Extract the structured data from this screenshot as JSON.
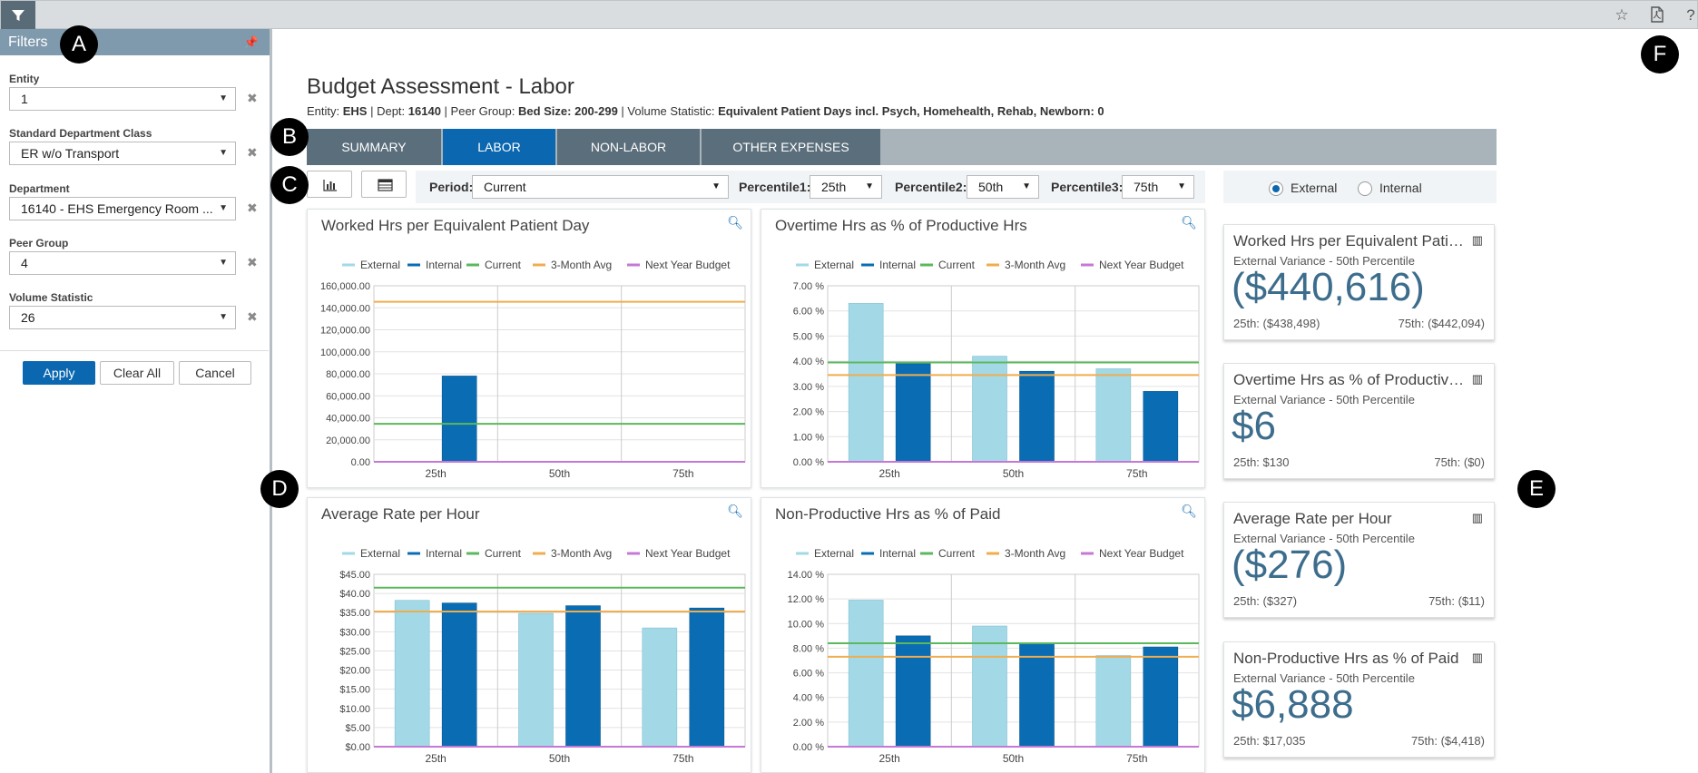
{
  "topbar": {
    "icons": [
      "filter-icon",
      "star-icon",
      "pdf-icon",
      "help-icon"
    ],
    "help_glyph": "?"
  },
  "filters": {
    "title": "Filters",
    "fields": [
      {
        "label": "Entity",
        "value": "1"
      },
      {
        "label": "Standard Department Class",
        "value": "ER w/o Transport"
      },
      {
        "label": "Department",
        "value": "16140 - EHS Emergency Room ..."
      },
      {
        "label": "Peer Group",
        "value": "4"
      },
      {
        "label": "Volume Statistic",
        "value": "26"
      }
    ],
    "apply_label": "Apply",
    "clear_label": "Clear All",
    "cancel_label": "Cancel"
  },
  "markers": {
    "a": "A",
    "b": "B",
    "c": "C",
    "d": "D",
    "e": "E",
    "f": "F"
  },
  "header": {
    "title": "Budget Assessment - Labor",
    "entity_label": "Entity: ",
    "entity_value": "EHS",
    "dept_label": " | Dept: ",
    "dept_value": "16140",
    "peer_label": " | Peer Group: ",
    "peer_value": "Bed Size: 200-299",
    "volume_label": " | Volume Statistic: ",
    "volume_value": "Equivalent Patient Days incl. Psych, Homehealth, Rehab, Newborn: 0"
  },
  "tabs": [
    "SUMMARY",
    "LABOR",
    "NON-LABOR",
    "OTHER EXPENSES"
  ],
  "active_tab": "LABOR",
  "toolbar": {
    "period_label": "Period:",
    "period_value": "Current",
    "p1_label": "Percentile1:",
    "p1_value": "25th",
    "p2_label": "Percentile2:",
    "p2_value": "50th",
    "p3_label": "Percentile3:",
    "p3_value": "75th",
    "radio_external": "External",
    "radio_internal": "Internal",
    "selected_radio": "External"
  },
  "colors": {
    "external": "#a3d9e6",
    "internal": "#0a6db3",
    "current": "#5cb85c",
    "three_month": "#f0ad4e",
    "next_year": "#c678d6",
    "accent": "#0a67b0"
  },
  "chart_data": [
    {
      "type": "bar",
      "title": "Worked Hrs per Equivalent Patient Day",
      "categories": [
        "25th",
        "50th",
        "75th"
      ],
      "series": [
        {
          "name": "External",
          "values": [
            0,
            0,
            0
          ]
        },
        {
          "name": "Internal",
          "values": [
            78000,
            0,
            0
          ]
        }
      ],
      "lines": [
        {
          "name": "Current",
          "value": 34500
        },
        {
          "name": "3-Month Avg",
          "value": 145500
        },
        {
          "name": "Next Year Budget",
          "value": 0
        }
      ],
      "legend": [
        "External",
        "Internal",
        "Current",
        "3-Month Avg",
        "Next Year Budget"
      ],
      "ylim": [
        0,
        160000
      ],
      "yticks": [
        "160,000.00",
        "140,000.00",
        "120,000.00",
        "100,000.00",
        "80,000.00",
        "60,000.00",
        "40,000.00",
        "20,000.00",
        "0.00"
      ],
      "grid": true,
      "legend_position": "top"
    },
    {
      "type": "bar",
      "title": "Overtime Hrs as % of Productive Hrs",
      "categories": [
        "25th",
        "50th",
        "75th"
      ],
      "series": [
        {
          "name": "External",
          "values": [
            6.3,
            4.2,
            3.7
          ]
        },
        {
          "name": "Internal",
          "values": [
            3.9,
            3.6,
            2.8
          ]
        }
      ],
      "lines": [
        {
          "name": "Current",
          "value": 3.95
        },
        {
          "name": "3-Month Avg",
          "value": 3.45
        },
        {
          "name": "Next Year Budget",
          "value": 0
        }
      ],
      "legend": [
        "External",
        "Internal",
        "Current",
        "3-Month Avg",
        "Next Year Budget"
      ],
      "ylim": [
        0,
        7
      ],
      "yticks": [
        "7.00 %",
        "6.00 %",
        "5.00 %",
        "4.00 %",
        "3.00 %",
        "2.00 %",
        "1.00 %",
        "0.00 %"
      ],
      "grid": true,
      "legend_position": "top"
    },
    {
      "type": "bar",
      "title": "Average Rate per Hour",
      "categories": [
        "25th",
        "50th",
        "75th"
      ],
      "series": [
        {
          "name": "External",
          "values": [
            38.2,
            34.8,
            31.0
          ]
        },
        {
          "name": "Internal",
          "values": [
            37.5,
            36.8,
            36.2
          ]
        }
      ],
      "lines": [
        {
          "name": "Current",
          "value": 41.5
        },
        {
          "name": "3-Month Avg",
          "value": 35.3
        },
        {
          "name": "Next Year Budget",
          "value": 0
        }
      ],
      "legend": [
        "External",
        "Internal",
        "Current",
        "3-Month Avg",
        "Next Year Budget"
      ],
      "ylim": [
        0,
        45
      ],
      "yticks": [
        "$45.00",
        "$40.00",
        "$35.00",
        "$30.00",
        "$25.00",
        "$20.00",
        "$15.00",
        "$10.00",
        "$5.00",
        "$0.00"
      ],
      "grid": true,
      "legend_position": "top"
    },
    {
      "type": "bar",
      "title": "Non-Productive Hrs as % of Paid",
      "categories": [
        "25th",
        "50th",
        "75th"
      ],
      "series": [
        {
          "name": "External",
          "values": [
            11.9,
            9.8,
            7.4
          ]
        },
        {
          "name": "Internal",
          "values": [
            9.0,
            8.4,
            8.1
          ]
        }
      ],
      "lines": [
        {
          "name": "Current",
          "value": 8.4
        },
        {
          "name": "3-Month Avg",
          "value": 7.3
        },
        {
          "name": "Next Year Budget",
          "value": 0
        }
      ],
      "legend": [
        "External",
        "Internal",
        "Current",
        "3-Month Avg",
        "Next Year Budget"
      ],
      "ylim": [
        0,
        14
      ],
      "yticks": [
        "14.00 %",
        "12.00 %",
        "10.00 %",
        "8.00 %",
        "6.00 %",
        "4.00 %",
        "2.00 %",
        "0.00 %"
      ],
      "grid": true,
      "legend_position": "top"
    }
  ],
  "kpis": [
    {
      "title": "Worked Hrs per Equivalent Patient Day",
      "subtitle": "External Variance - 50th Percentile",
      "value": "($440,616)",
      "p25": "25th: ($438,498)",
      "p75": "75th: ($442,094)"
    },
    {
      "title": "Overtime Hrs as % of Productive Hrs",
      "subtitle": "External Variance - 50th Percentile",
      "value": "$6",
      "p25": "25th: $130",
      "p75": "75th: ($0)"
    },
    {
      "title": "Average Rate per Hour",
      "subtitle": "External Variance - 50th Percentile",
      "value": "($276)",
      "p25": "25th: ($327)",
      "p75": "75th: ($11)"
    },
    {
      "title": "Non-Productive Hrs as % of Paid",
      "subtitle": "External Variance - 50th Percentile",
      "value": "$6,888",
      "p25": "25th: $17,035",
      "p75": "75th: ($4,418)"
    }
  ]
}
